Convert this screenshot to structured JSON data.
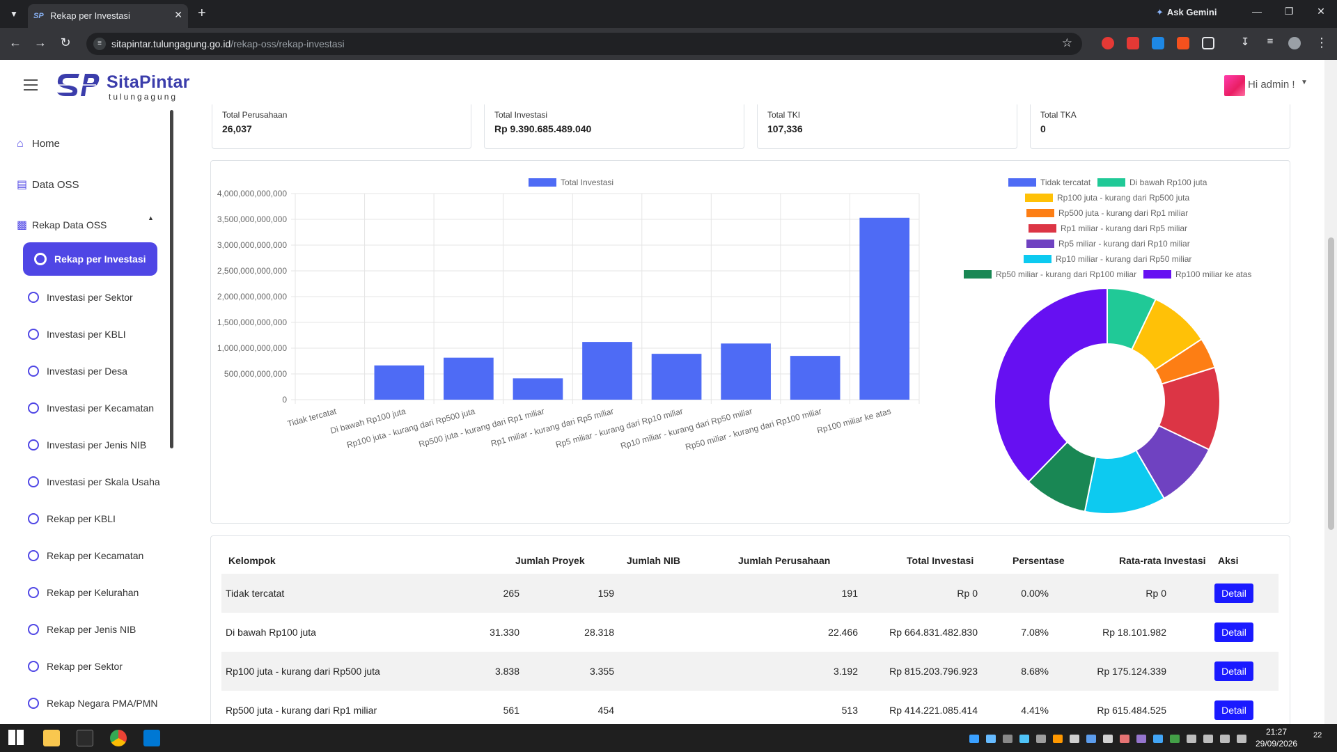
{
  "browser": {
    "tab_title": "Rekap per Investasi",
    "favicon_text": "SP",
    "new_tab": "+",
    "gemini_label": "Ask Gemini",
    "url_host": "sitapintar.tulungagung.go.id",
    "url_path": "/rekap-oss/rekap-investasi"
  },
  "header": {
    "brand_name": "SitaPintar",
    "brand_sub": "tulungagung",
    "greeting": "Hi admin !"
  },
  "sidebar": {
    "home": "Home",
    "data_oss": "Data OSS",
    "rekap_data_oss": "Rekap Data OSS",
    "active_item": "Rekap per Investasi",
    "items": [
      "Investasi per Sektor",
      "Investasi per KBLI",
      "Investasi per Desa",
      "Investasi per Kecamatan",
      "Investasi per Jenis NIB",
      "Investasi per Skala Usaha",
      "Rekap per KBLI",
      "Rekap per Kecamatan",
      "Rekap per Kelurahan",
      "Rekap per Jenis NIB",
      "Rekap per Sektor",
      "Rekap Negara PMA/PMN"
    ]
  },
  "stats": [
    {
      "title": "Total Perusahaan",
      "value": "26,037"
    },
    {
      "title": "Total Investasi",
      "value": "Rp 9.390.685.489.040"
    },
    {
      "title": "Total TKI",
      "value": "107,336"
    },
    {
      "title": "Total TKA",
      "value": "0"
    }
  ],
  "chart_data": [
    {
      "type": "bar",
      "legend": [
        "Total Investasi"
      ],
      "color": "#4e6bf5",
      "categories": [
        "Tidak tercatat",
        "Di bawah Rp100 juta",
        "Rp100 juta - kurang dari Rp500 juta",
        "Rp500 juta - kurang dari Rp1 miliar",
        "Rp1 miliar - kurang dari Rp5 miliar",
        "Rp5 miliar - kurang dari Rp10 miliar",
        "Rp10 miliar - kurang dari Rp50 miliar",
        "Rp50 miliar - kurang dari Rp100 miliar",
        "Rp100 miliar ke atas"
      ],
      "values": [
        0,
        664831482830,
        815203796923,
        414221085414,
        1120000000000,
        890000000000,
        1090000000000,
        850000000000,
        3530000000000
      ],
      "ylim": [
        0,
        4000000000000
      ],
      "yticks": [
        "4,000,000,000,000",
        "3,500,000,000,000",
        "3,000,000,000,000",
        "2,500,000,000,000",
        "2,000,000,000,000",
        "1,500,000,000,000",
        "1,000,000,000,000",
        "500,000,000,000",
        "0"
      ],
      "grid": true,
      "legend_position": "top"
    },
    {
      "type": "pie",
      "donut": true,
      "labels": [
        "Tidak tercatat",
        "Di bawah Rp100 juta",
        "Rp100 juta - kurang dari Rp500 juta",
        "Rp500 juta - kurang dari Rp1 miliar",
        "Rp1 miliar - kurang dari Rp5 miliar",
        "Rp5 miliar - kurang dari Rp10 miliar",
        "Rp10 miliar - kurang dari Rp50 miliar",
        "Rp50 miliar - kurang dari Rp100 miliar",
        "Rp100 miliar ke atas"
      ],
      "values": [
        0.0,
        7.08,
        8.68,
        4.41,
        11.9,
        9.5,
        11.6,
        9.1,
        37.7
      ],
      "colors": [
        "#4e6bf5",
        "#20c997",
        "#ffc107",
        "#fd7e14",
        "#dc3545",
        "#6f42c1",
        "#0dcaf0",
        "#198754",
        "#6610f2"
      ],
      "legend_position": "top"
    }
  ],
  "table": {
    "headers": [
      "Kelompok",
      "Jumlah Proyek",
      "Jumlah NIB",
      "Jumlah Perusahaan",
      "Total Investasi",
      "Persentase",
      "Rata-rata Investasi",
      "Aksi"
    ],
    "rows": [
      [
        "Tidak tercatat",
        "265",
        "159",
        "191",
        "Rp 0",
        "0.00%",
        "Rp 0"
      ],
      [
        "Di bawah Rp100 juta",
        "31.330",
        "28.318",
        "22.466",
        "Rp 664.831.482.830",
        "7.08%",
        "Rp 18.101.982"
      ],
      [
        "Rp100 juta - kurang dari Rp500 juta",
        "3.838",
        "3.355",
        "3.192",
        "Rp 815.203.796.923",
        "8.68%",
        "Rp 175.124.339"
      ],
      [
        "Rp500 juta - kurang dari Rp1 miliar",
        "561",
        "454",
        "513",
        "Rp 414.221.085.414",
        "4.41%",
        "Rp 615.484.525"
      ]
    ],
    "action_label": "Detail"
  },
  "taskbar": {
    "time": "21:27",
    "date": "29/09/2026",
    "notifications": "22"
  }
}
